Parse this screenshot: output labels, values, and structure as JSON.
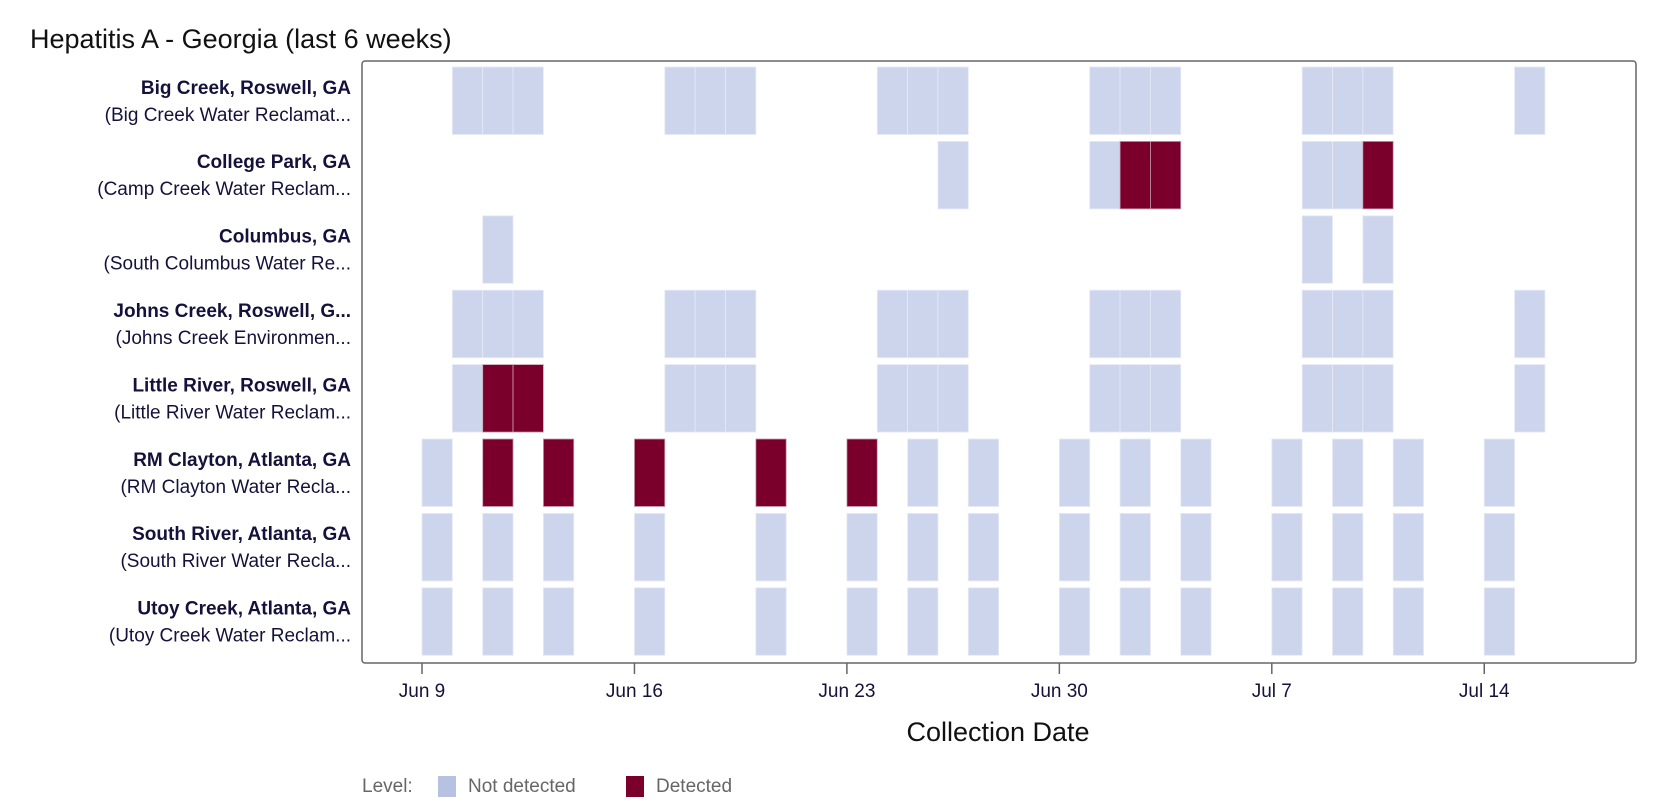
{
  "chart_data": {
    "type": "heatmap",
    "title": "Hepatitis A - Georgia (last 6 weeks)",
    "xlabel": "Collection Date",
    "x_ticks": [
      "Jun 9",
      "Jun 16",
      "Jun 23",
      "Jun 30",
      "Jul 7",
      "Jul 14"
    ],
    "x_range": [
      "Jun 8",
      "Jul 19"
    ],
    "legend": {
      "title": "Level:",
      "position": "bottom-left",
      "items": [
        {
          "label": "Not detected",
          "color": "#cdd5ec"
        },
        {
          "label": "Detected",
          "color": "#7a002b"
        }
      ]
    },
    "rows": [
      {
        "site": "Big Creek, Roswell, GA",
        "plant": "(Big Creek Water Reclamat...",
        "samples": [
          [
            "Jun 10",
            "N"
          ],
          [
            "Jun 11",
            "N"
          ],
          [
            "Jun 12",
            "N"
          ],
          [
            "Jun 17",
            "N"
          ],
          [
            "Jun 18",
            "N"
          ],
          [
            "Jun 19",
            "N"
          ],
          [
            "Jun 24",
            "N"
          ],
          [
            "Jun 25",
            "N"
          ],
          [
            "Jun 26",
            "N"
          ],
          [
            "Jul 1",
            "N"
          ],
          [
            "Jul 2",
            "N"
          ],
          [
            "Jul 3",
            "N"
          ],
          [
            "Jul 8",
            "N"
          ],
          [
            "Jul 9",
            "N"
          ],
          [
            "Jul 10",
            "N"
          ],
          [
            "Jul 15",
            "N"
          ]
        ]
      },
      {
        "site": "College Park, GA",
        "plant": "(Camp Creek Water Reclam...",
        "samples": [
          [
            "Jun 26",
            "N"
          ],
          [
            "Jul 1",
            "N"
          ],
          [
            "Jul 2",
            "D"
          ],
          [
            "Jul 3",
            "D"
          ],
          [
            "Jul 8",
            "N"
          ],
          [
            "Jul 9",
            "N"
          ],
          [
            "Jul 10",
            "D"
          ]
        ]
      },
      {
        "site": "Columbus, GA",
        "plant": "(South Columbus Water Re...",
        "samples": [
          [
            "Jun 11",
            "N"
          ],
          [
            "Jul 8",
            "N"
          ],
          [
            "Jul 10",
            "N"
          ]
        ]
      },
      {
        "site": "Johns Creek, Roswell, G...",
        "plant": "(Johns Creek Environmen...",
        "samples": [
          [
            "Jun 10",
            "N"
          ],
          [
            "Jun 11",
            "N"
          ],
          [
            "Jun 12",
            "N"
          ],
          [
            "Jun 17",
            "N"
          ],
          [
            "Jun 18",
            "N"
          ],
          [
            "Jun 19",
            "N"
          ],
          [
            "Jun 24",
            "N"
          ],
          [
            "Jun 25",
            "N"
          ],
          [
            "Jun 26",
            "N"
          ],
          [
            "Jul 1",
            "N"
          ],
          [
            "Jul 2",
            "N"
          ],
          [
            "Jul 3",
            "N"
          ],
          [
            "Jul 8",
            "N"
          ],
          [
            "Jul 9",
            "N"
          ],
          [
            "Jul 10",
            "N"
          ],
          [
            "Jul 15",
            "N"
          ]
        ]
      },
      {
        "site": "Little River, Roswell, GA",
        "plant": "(Little River Water Reclam...",
        "samples": [
          [
            "Jun 10",
            "N"
          ],
          [
            "Jun 11",
            "D"
          ],
          [
            "Jun 12",
            "D"
          ],
          [
            "Jun 17",
            "N"
          ],
          [
            "Jun 18",
            "N"
          ],
          [
            "Jun 19",
            "N"
          ],
          [
            "Jun 24",
            "N"
          ],
          [
            "Jun 25",
            "N"
          ],
          [
            "Jun 26",
            "N"
          ],
          [
            "Jul 1",
            "N"
          ],
          [
            "Jul 2",
            "N"
          ],
          [
            "Jul 3",
            "N"
          ],
          [
            "Jul 8",
            "N"
          ],
          [
            "Jul 9",
            "N"
          ],
          [
            "Jul 10",
            "N"
          ],
          [
            "Jul 15",
            "N"
          ]
        ]
      },
      {
        "site": "RM Clayton, Atlanta, GA",
        "plant": "(RM Clayton Water Recla...",
        "samples": [
          [
            "Jun 9",
            "N"
          ],
          [
            "Jun 11",
            "D"
          ],
          [
            "Jun 13",
            "D"
          ],
          [
            "Jun 16",
            "D"
          ],
          [
            "Jun 20",
            "D"
          ],
          [
            "Jun 23",
            "D"
          ],
          [
            "Jun 25",
            "N"
          ],
          [
            "Jun 27",
            "N"
          ],
          [
            "Jun 30",
            "N"
          ],
          [
            "Jul 2",
            "N"
          ],
          [
            "Jul 4",
            "N"
          ],
          [
            "Jul 7",
            "N"
          ],
          [
            "Jul 9",
            "N"
          ],
          [
            "Jul 11",
            "N"
          ],
          [
            "Jul 14",
            "N"
          ]
        ]
      },
      {
        "site": "South River, Atlanta, GA",
        "plant": "(South River Water Recla...",
        "samples": [
          [
            "Jun 9",
            "N"
          ],
          [
            "Jun 11",
            "N"
          ],
          [
            "Jun 13",
            "N"
          ],
          [
            "Jun 16",
            "N"
          ],
          [
            "Jun 20",
            "N"
          ],
          [
            "Jun 23",
            "N"
          ],
          [
            "Jun 25",
            "N"
          ],
          [
            "Jun 27",
            "N"
          ],
          [
            "Jun 30",
            "N"
          ],
          [
            "Jul 2",
            "N"
          ],
          [
            "Jul 4",
            "N"
          ],
          [
            "Jul 7",
            "N"
          ],
          [
            "Jul 9",
            "N"
          ],
          [
            "Jul 11",
            "N"
          ],
          [
            "Jul 14",
            "N"
          ]
        ]
      },
      {
        "site": "Utoy Creek, Atlanta, GA",
        "plant": "(Utoy Creek Water Reclam...",
        "samples": [
          [
            "Jun 9",
            "N"
          ],
          [
            "Jun 11",
            "N"
          ],
          [
            "Jun 13",
            "N"
          ],
          [
            "Jun 16",
            "N"
          ],
          [
            "Jun 20",
            "N"
          ],
          [
            "Jun 23",
            "N"
          ],
          [
            "Jun 25",
            "N"
          ],
          [
            "Jun 27",
            "N"
          ],
          [
            "Jun 30",
            "N"
          ],
          [
            "Jul 2",
            "N"
          ],
          [
            "Jul 4",
            "N"
          ],
          [
            "Jul 7",
            "N"
          ],
          [
            "Jul 9",
            "N"
          ],
          [
            "Jul 11",
            "N"
          ],
          [
            "Jul 14",
            "N"
          ]
        ]
      }
    ]
  }
}
